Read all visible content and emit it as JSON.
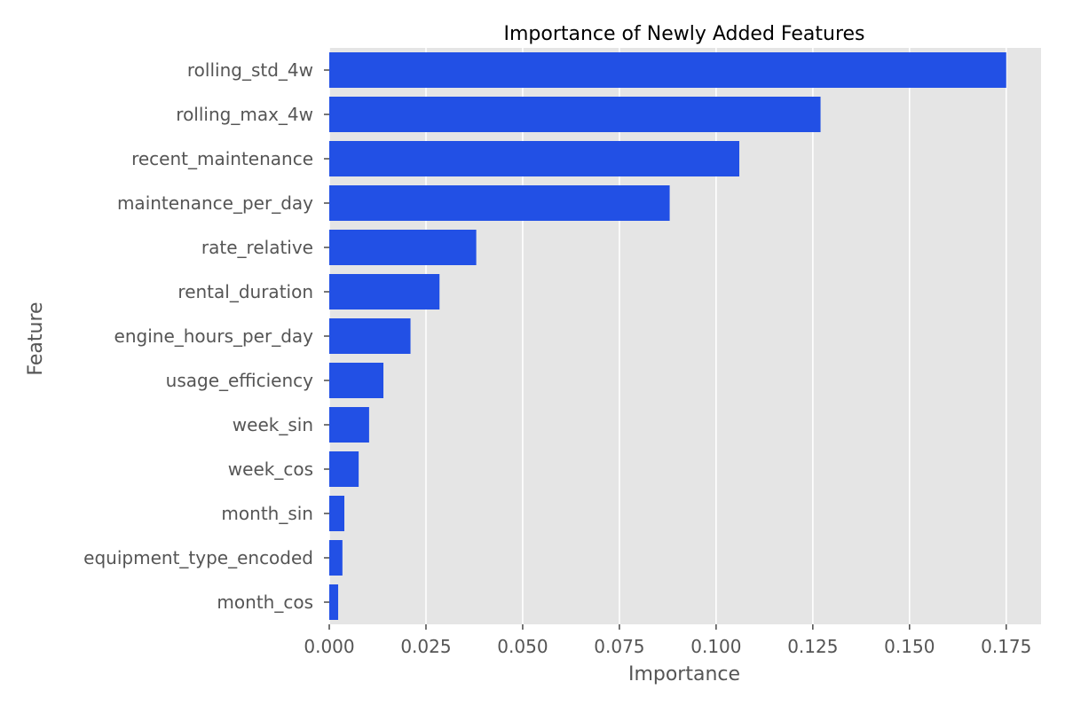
{
  "chart_data": {
    "type": "bar",
    "orientation": "horizontal",
    "title": "Importance of Newly Added Features",
    "xlabel": "Importance",
    "ylabel": "Feature",
    "categories": [
      "rolling_std_4w",
      "rolling_max_4w",
      "recent_maintenance",
      "maintenance_per_day",
      "rate_relative",
      "rental_duration",
      "engine_hours_per_day",
      "usage_efficiency",
      "week_sin",
      "week_cos",
      "month_sin",
      "equipment_type_encoded",
      "month_cos"
    ],
    "values": [
      0.175,
      0.127,
      0.106,
      0.088,
      0.038,
      0.0285,
      0.021,
      0.014,
      0.0103,
      0.0076,
      0.0039,
      0.0034,
      0.0023
    ],
    "xlim": [
      0,
      0.184
    ],
    "xticks": [
      "0.000",
      "0.025",
      "0.050",
      "0.075",
      "0.100",
      "0.125",
      "0.150",
      "0.175"
    ],
    "grid": true,
    "bar_color": "#2250e5",
    "panel_color": "#e5e5e5",
    "grid_color": "#ffffff"
  }
}
